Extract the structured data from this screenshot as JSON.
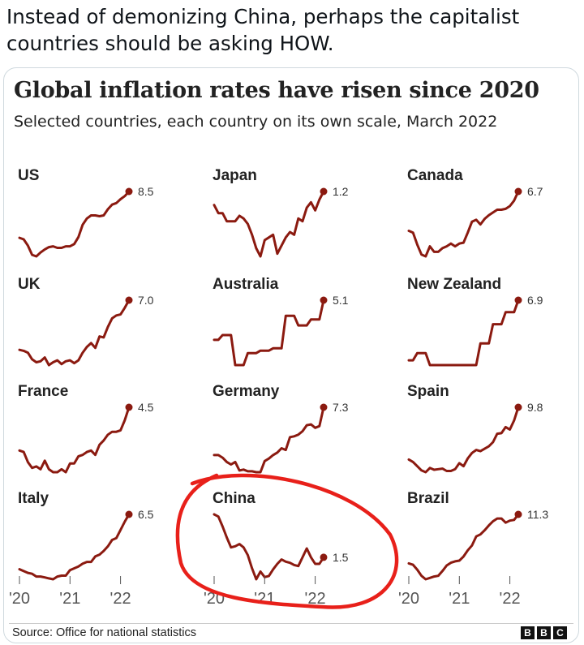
{
  "tweet": {
    "text": "Instead of demonizing China, perhaps the capitalist countries should be asking HOW."
  },
  "card": {
    "title": "Global inflation rates have risen since 2020",
    "subtitle": "Selected countries, each country on its own scale, March 2022",
    "source": "Source: Office for national statistics",
    "logo_letters": [
      "B",
      "B",
      "C"
    ]
  },
  "chart_data": {
    "type": "line",
    "title": "Global inflation rates have risen since 2020",
    "subtitle": "Selected countries, each country on its own scale, March 2022",
    "x_tick_labels": [
      "'20",
      "'21",
      "'22"
    ],
    "x_range": [
      "Jan 2020",
      "Mar 2022"
    ],
    "line_color": "#8b1a10",
    "annotation": {
      "target": "China",
      "shape": "hand-drawn ellipse",
      "color": "#e8201a"
    },
    "series": [
      {
        "name": "US",
        "last_label": "8.5",
        "values": [
          2.5,
          2.3,
          1.5,
          0.3,
          0.1,
          0.6,
          1.0,
          1.3,
          1.4,
          1.2,
          1.2,
          1.4,
          1.4,
          1.7,
          2.6,
          4.2,
          5.0,
          5.4,
          5.4,
          5.3,
          5.4,
          6.2,
          6.8,
          7.0,
          7.5,
          7.9,
          8.5
        ]
      },
      {
        "name": "Japan",
        "last_label": "1.2",
        "values": [
          0.7,
          0.4,
          0.4,
          0.1,
          0.1,
          0.1,
          0.3,
          0.2,
          0.0,
          -0.4,
          -0.9,
          -1.2,
          -0.6,
          -0.5,
          -0.4,
          -1.1,
          -0.8,
          -0.5,
          -0.3,
          -0.4,
          0.2,
          0.1,
          0.6,
          0.8,
          0.5,
          0.9,
          1.2
        ]
      },
      {
        "name": "Canada",
        "last_label": "6.7",
        "values": [
          2.4,
          2.2,
          0.9,
          -0.2,
          -0.4,
          0.7,
          0.1,
          0.1,
          0.5,
          0.7,
          1.0,
          0.7,
          1.0,
          1.1,
          2.2,
          3.4,
          3.6,
          3.1,
          3.7,
          4.1,
          4.4,
          4.7,
          4.7,
          4.8,
          5.1,
          5.7,
          6.7
        ]
      },
      {
        "name": "UK",
        "last_label": "7.0",
        "values": [
          1.8,
          1.7,
          1.5,
          0.8,
          0.5,
          0.6,
          1.0,
          0.2,
          0.5,
          0.7,
          0.3,
          0.6,
          0.7,
          0.4,
          0.7,
          1.5,
          2.1,
          2.5,
          2.0,
          3.2,
          3.1,
          4.2,
          5.1,
          5.4,
          5.5,
          6.2,
          7.0
        ]
      },
      {
        "name": "Australia",
        "last_label": "5.1",
        "values": [
          1.8,
          1.8,
          2.2,
          2.2,
          2.2,
          -0.3,
          -0.3,
          -0.3,
          0.7,
          0.7,
          0.7,
          0.9,
          0.9,
          0.9,
          1.1,
          1.1,
          1.1,
          3.8,
          3.8,
          3.8,
          3.0,
          3.0,
          3.0,
          3.5,
          3.5,
          3.5,
          5.1
        ]
      },
      {
        "name": "New Zealand",
        "last_label": "6.9",
        "values": [
          1.9,
          1.9,
          2.5,
          2.5,
          2.5,
          1.5,
          1.5,
          1.5,
          1.5,
          1.5,
          1.5,
          1.5,
          1.5,
          1.5,
          1.5,
          1.5,
          1.5,
          3.3,
          3.3,
          3.3,
          4.9,
          4.9,
          4.9,
          5.9,
          5.9,
          5.9,
          6.9
        ]
      },
      {
        "name": "France",
        "last_label": "4.5",
        "values": [
          1.5,
          1.4,
          0.7,
          0.3,
          0.4,
          0.2,
          0.8,
          0.2,
          0.0,
          0.0,
          0.2,
          0.0,
          0.6,
          0.6,
          1.1,
          1.2,
          1.4,
          1.5,
          1.2,
          1.9,
          2.2,
          2.6,
          2.8,
          2.8,
          2.9,
          3.6,
          4.5
        ]
      },
      {
        "name": "Germany",
        "last_label": "7.3",
        "values": [
          1.7,
          1.7,
          1.4,
          0.9,
          0.6,
          0.9,
          -0.1,
          0.0,
          -0.2,
          -0.2,
          -0.3,
          -0.3,
          1.0,
          1.3,
          1.7,
          2.0,
          2.5,
          2.3,
          3.8,
          3.9,
          4.1,
          4.5,
          5.2,
          5.3,
          4.9,
          5.1,
          7.3
        ]
      },
      {
        "name": "Spain",
        "last_label": "9.8",
        "values": [
          1.1,
          0.7,
          0.0,
          -0.7,
          -1.0,
          -0.3,
          -0.6,
          -0.5,
          -0.4,
          -0.8,
          -0.8,
          -0.5,
          0.5,
          0.0,
          1.3,
          2.2,
          2.7,
          2.5,
          2.9,
          3.3,
          4.0,
          5.4,
          5.5,
          6.5,
          6.1,
          7.6,
          9.8
        ]
      },
      {
        "name": "Italy",
        "last_label": "6.5",
        "values": [
          0.5,
          0.3,
          0.1,
          0.0,
          -0.3,
          -0.3,
          -0.4,
          -0.5,
          -0.6,
          -0.3,
          -0.2,
          -0.2,
          0.4,
          0.6,
          0.8,
          1.1,
          1.3,
          1.3,
          1.9,
          2.1,
          2.5,
          3.0,
          3.7,
          3.9,
          4.8,
          5.7,
          6.5
        ]
      },
      {
        "name": "China",
        "last_label": "1.5",
        "values": [
          5.4,
          5.2,
          4.3,
          3.3,
          2.4,
          2.5,
          2.7,
          2.4,
          1.7,
          0.5,
          -0.5,
          0.2,
          -0.3,
          -0.2,
          0.4,
          0.9,
          1.3,
          1.1,
          1.0,
          0.8,
          0.7,
          1.5,
          2.3,
          1.5,
          0.9,
          0.9,
          1.5
        ]
      },
      {
        "name": "Brazil",
        "last_label": "11.3",
        "values": [
          4.2,
          4.0,
          3.3,
          2.4,
          1.9,
          2.1,
          2.3,
          2.4,
          3.1,
          3.9,
          4.3,
          4.5,
          4.6,
          5.2,
          6.1,
          6.8,
          8.1,
          8.4,
          9.0,
          9.7,
          10.3,
          10.7,
          10.7,
          10.1,
          10.4,
          10.5,
          11.3
        ]
      }
    ]
  }
}
